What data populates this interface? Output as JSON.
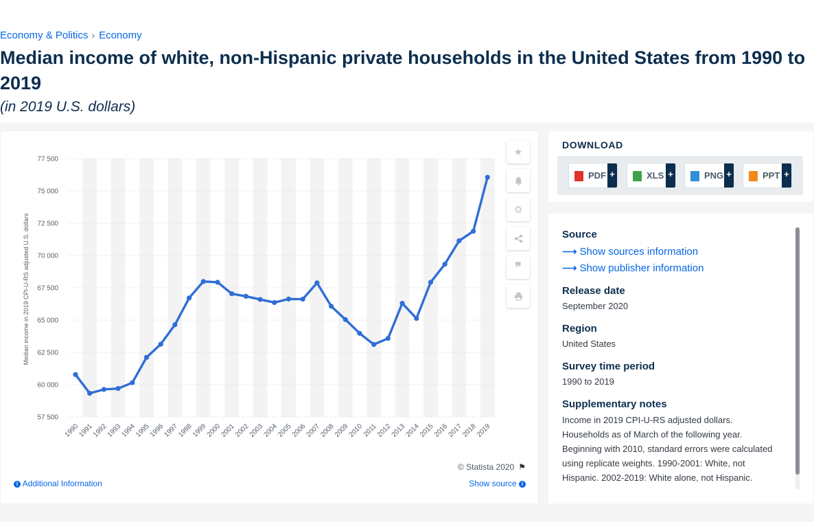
{
  "breadcrumb": {
    "items": [
      "Economy & Politics",
      "Economy"
    ],
    "separator": "›"
  },
  "header": {
    "title": "Median income of white, non-Hispanic private households in the United States from 1990 to 2019",
    "subtitle": "(in 2019 U.S. dollars)"
  },
  "chart_tools": {
    "icons": [
      "star-icon",
      "bell-icon",
      "gear-icon",
      "share-icon",
      "quote-icon",
      "print-icon"
    ]
  },
  "chart_data": {
    "type": "line",
    "title": "",
    "xlabel": "",
    "ylabel": "Median income in 2019 CPI-U-RS adjusted U.S. dollars",
    "x": [
      "1990",
      "1991",
      "1992",
      "1993",
      "1994",
      "1995",
      "1996",
      "1997",
      "1998",
      "1999",
      "2000",
      "2001",
      "2002",
      "2003",
      "2004",
      "2005",
      "2006",
      "2007",
      "2008",
      "2009",
      "2010",
      "2011",
      "2012",
      "2013",
      "2014",
      "2015",
      "2016",
      "2017",
      "2018",
      "2019"
    ],
    "series": [
      {
        "values": [
          60780,
          59330,
          59630,
          59700,
          60150,
          62110,
          63130,
          64640,
          66710,
          67990,
          67930,
          67040,
          66840,
          66600,
          66360,
          66630,
          66620,
          67880,
          66070,
          65040,
          63970,
          63110,
          63580,
          66300,
          65130,
          67930,
          69330,
          71140,
          71880,
          76060
        ]
      }
    ],
    "ylim": [
      57500,
      77500
    ],
    "yticks": [
      57500,
      60000,
      62500,
      65000,
      67500,
      70000,
      72500,
      75000,
      77500
    ],
    "ytick_labels": [
      "57 500",
      "60 000",
      "62 500",
      "65 000",
      "67 500",
      "70 000",
      "72 500",
      "75 000",
      "77 500"
    ],
    "grid": "horizontal",
    "legend": "none",
    "color": "#2f6ed6"
  },
  "chart_footer": {
    "copyright": "© Statista 2020",
    "additional_info": "Additional Information",
    "show_source": "Show source"
  },
  "download": {
    "title": "DOWNLOAD",
    "buttons": [
      {
        "label": "PDF",
        "color": "#e0312c"
      },
      {
        "label": "XLS",
        "color": "#3fa24a"
      },
      {
        "label": "PNG",
        "color": "#2f8fd8"
      },
      {
        "label": "PPT",
        "color": "#f08a1c"
      }
    ],
    "plus": "+"
  },
  "meta": {
    "source_heading": "Source",
    "show_sources": "Show sources information",
    "show_publisher": "Show publisher information",
    "release_heading": "Release date",
    "release_value": "September 2020",
    "region_heading": "Region",
    "region_value": "United States",
    "survey_heading": "Survey time period",
    "survey_value": "1990 to 2019",
    "notes_heading": "Supplementary notes",
    "notes_text": "Income in 2019 CPI-U-RS adjusted dollars. Households as of March of the following year. Beginning with 2010, standard errors were calculated using replicate weights. 1990-2001: White, not Hispanic. 2002-2019: White alone, not Hispanic."
  }
}
